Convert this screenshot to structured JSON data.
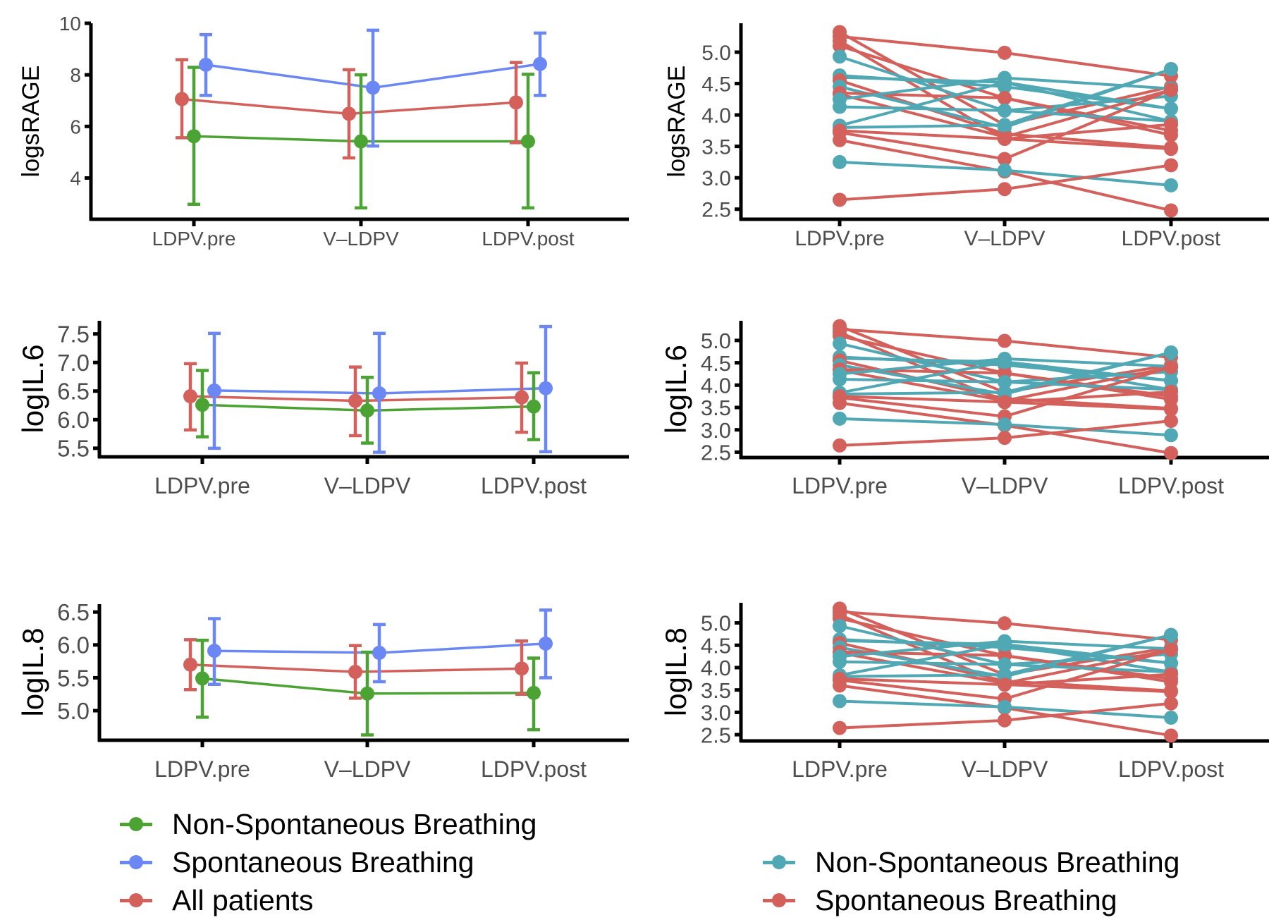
{
  "chart_data": [
    {
      "id": "left-srage",
      "type": "line",
      "subtype": "means-with-error-bars",
      "ylabel": "logsRAGE",
      "xlabel": "",
      "categories": [
        "LDPV.pre",
        "V–LDPV",
        "LDPV.post"
      ],
      "ylim": [
        2.4,
        10
      ],
      "yticks": [
        4,
        6,
        8,
        10
      ],
      "ytick_labels": [
        "4",
        "6",
        "8",
        "10"
      ],
      "grid": false,
      "series": [
        {
          "name": "All patients",
          "color": "#d3605b",
          "mean": [
            7.06,
            6.49,
            6.93
          ],
          "lower": [
            5.56,
            4.78,
            5.37
          ],
          "upper": [
            8.59,
            8.2,
            8.48
          ]
        },
        {
          "name": "Non-Spontaneous Breathing",
          "color": "#4aa332",
          "mean": [
            5.62,
            5.42,
            5.42
          ],
          "lower": [
            2.98,
            2.84,
            2.84
          ],
          "upper": [
            8.29,
            8.0,
            8.02
          ]
        },
        {
          "name": "Spontaneous Breathing",
          "color": "#6a87f3",
          "mean": [
            8.39,
            7.5,
            8.42
          ],
          "lower": [
            7.2,
            5.24,
            7.2
          ],
          "upper": [
            9.56,
            9.73,
            9.62
          ]
        }
      ]
    },
    {
      "id": "right-srage",
      "type": "line",
      "subtype": "individual-trajectories",
      "ylabel": "logsRAGE",
      "xlabel": "",
      "categories": [
        "LDPV.pre",
        "V–LDPV",
        "LDPV.post"
      ],
      "ylim": [
        2.34,
        5.46
      ],
      "yticks": [
        2.5,
        3.0,
        3.5,
        4.0,
        4.5,
        5.0
      ],
      "ytick_labels": [
        "2.5",
        "3.0",
        "3.5",
        "4.0",
        "4.5",
        "5.0"
      ],
      "grid": false,
      "series_ref": "individuals"
    },
    {
      "id": "left-il6",
      "type": "line",
      "subtype": "means-with-error-bars",
      "ylabel": "logIL.6",
      "xlabel": "",
      "categories": [
        "LDPV.pre",
        "V–LDPV",
        "LDPV.post"
      ],
      "ylim": [
        5.35,
        7.73
      ],
      "yticks": [
        5.5,
        6.0,
        6.5,
        7.0,
        7.5
      ],
      "ytick_labels": [
        "5.5",
        "6.0",
        "6.5",
        "7.0",
        "7.5"
      ],
      "grid": false,
      "series": [
        {
          "name": "All patients",
          "color": "#d3605b",
          "mean": [
            6.41,
            6.33,
            6.39
          ],
          "lower": [
            5.82,
            5.72,
            5.78
          ],
          "upper": [
            6.98,
            6.92,
            6.99
          ]
        },
        {
          "name": "Non-Spontaneous Breathing",
          "color": "#4aa332",
          "mean": [
            6.26,
            6.16,
            6.23
          ],
          "lower": [
            5.7,
            5.59,
            5.65
          ],
          "upper": [
            6.86,
            6.74,
            6.82
          ]
        },
        {
          "name": "Spontaneous Breathing",
          "color": "#6a87f3",
          "mean": [
            6.51,
            6.46,
            6.55
          ],
          "lower": [
            5.5,
            5.43,
            5.44
          ],
          "upper": [
            7.51,
            7.51,
            7.63
          ]
        }
      ]
    },
    {
      "id": "right-il6",
      "type": "line",
      "subtype": "individual-trajectories",
      "ylabel": "logIL.6",
      "xlabel": "",
      "categories": [
        "LDPV.pre",
        "V–LDPV",
        "LDPV.post"
      ],
      "ylim": [
        2.38,
        5.44
      ],
      "yticks": [
        2.5,
        3.0,
        3.5,
        4.0,
        4.5,
        5.0
      ],
      "ytick_labels": [
        "2.5",
        "3.0",
        "3.5",
        "4.0",
        "4.5",
        "5.0"
      ],
      "grid": false,
      "series_ref": "individuals"
    },
    {
      "id": "left-il8",
      "type": "line",
      "subtype": "means-with-error-bars",
      "ylabel": "logIL.8",
      "xlabel": "",
      "categories": [
        "LDPV.pre",
        "V–LDPV",
        "LDPV.post"
      ],
      "ylim": [
        4.55,
        6.62
      ],
      "yticks": [
        5.0,
        5.5,
        6.0,
        6.5
      ],
      "ytick_labels": [
        "5.0",
        "5.5",
        "6.0",
        "6.5"
      ],
      "grid": false,
      "series": [
        {
          "name": "All patients",
          "color": "#d3605b",
          "mean": [
            5.7,
            5.59,
            5.64
          ],
          "lower": [
            5.32,
            5.19,
            5.25
          ],
          "upper": [
            6.08,
            5.99,
            6.06
          ]
        },
        {
          "name": "Non-Spontaneous Breathing",
          "color": "#4aa332",
          "mean": [
            5.49,
            5.26,
            5.27
          ],
          "lower": [
            4.9,
            4.63,
            4.71
          ],
          "upper": [
            6.07,
            5.89,
            5.8
          ]
        },
        {
          "name": "Spontaneous Breathing",
          "color": "#6a87f3",
          "mean": [
            5.91,
            5.88,
            6.02
          ],
          "lower": [
            5.4,
            5.44,
            5.5
          ],
          "upper": [
            6.4,
            6.31,
            6.53
          ]
        }
      ]
    },
    {
      "id": "right-il8",
      "type": "line",
      "subtype": "individual-trajectories",
      "ylabel": "logIL.8",
      "xlabel": "",
      "categories": [
        "LDPV.pre",
        "V–LDPV",
        "LDPV.post"
      ],
      "ylim": [
        2.36,
        5.45
      ],
      "yticks": [
        2.5,
        3.0,
        3.5,
        4.0,
        4.5,
        5.0
      ],
      "ytick_labels": [
        "2.5",
        "3.0",
        "3.5",
        "4.0",
        "4.5",
        "5.0"
      ],
      "grid": false,
      "series_ref": "individuals"
    }
  ],
  "individuals": {
    "groups": [
      {
        "name": "Non-Spontaneous Breathing",
        "color": "#4fa8b4"
      },
      {
        "name": "Spontaneous Breathing",
        "color": "#d3605b"
      }
    ],
    "patients": [
      {
        "group": 1,
        "values": [
          5.32,
          3.84,
          4.45
        ]
      },
      {
        "group": 1,
        "values": [
          5.25,
          4.99,
          4.62
        ]
      },
      {
        "group": 1,
        "values": [
          5.18,
          3.62,
          3.46
        ]
      },
      {
        "group": 1,
        "values": [
          5.1,
          4.27,
          3.68
        ]
      },
      {
        "group": 0,
        "values": [
          4.93,
          4.07,
          4.3
        ]
      },
      {
        "group": 0,
        "values": [
          4.63,
          4.45,
          4.1
        ]
      },
      {
        "group": 0,
        "values": [
          4.6,
          4.52,
          3.9
        ]
      },
      {
        "group": 1,
        "values": [
          4.55,
          3.7,
          3.48
        ]
      },
      {
        "group": 0,
        "values": [
          4.45,
          3.8,
          4.73
        ]
      },
      {
        "group": 1,
        "values": [
          4.35,
          4.27,
          3.75
        ]
      },
      {
        "group": 1,
        "values": [
          4.33,
          3.65,
          4.4
        ]
      },
      {
        "group": 0,
        "values": [
          4.25,
          4.59,
          4.42
        ]
      },
      {
        "group": 0,
        "values": [
          4.13,
          4.07,
          3.9
        ]
      },
      {
        "group": 0,
        "values": [
          3.83,
          4.52,
          4.1
        ]
      },
      {
        "group": 0,
        "values": [
          3.8,
          3.84,
          4.73
        ]
      },
      {
        "group": 1,
        "values": [
          3.75,
          3.62,
          3.85
        ]
      },
      {
        "group": 1,
        "values": [
          3.72,
          3.3,
          4.4
        ]
      },
      {
        "group": 1,
        "values": [
          3.6,
          3.1,
          2.48
        ]
      },
      {
        "group": 0,
        "values": [
          3.25,
          3.12,
          2.88
        ]
      },
      {
        "group": 1,
        "values": [
          2.65,
          2.82,
          3.2
        ]
      }
    ]
  },
  "legends": {
    "left": [
      {
        "label": "Non-Spontaneous Breathing",
        "color": "#4aa332"
      },
      {
        "label": "Spontaneous Breathing",
        "color": "#6a87f3"
      },
      {
        "label": "All patients",
        "color": "#d3605b"
      }
    ],
    "right": [
      {
        "label": "Non-Spontaneous Breathing",
        "color": "#4fa8b4"
      },
      {
        "label": "Spontaneous Breathing",
        "color": "#d3605b"
      }
    ]
  }
}
